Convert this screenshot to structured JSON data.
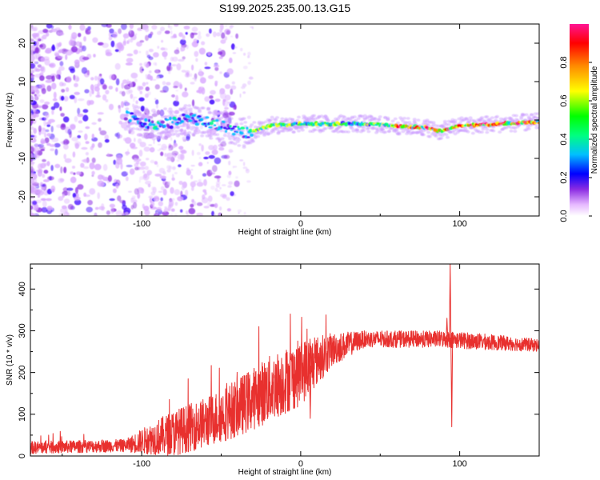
{
  "figure_title": "S199.2025.235.00.13.G15",
  "chart_data": [
    {
      "type": "heatmap",
      "title": "S199.2025.235.00.13.G15",
      "xlabel": "Height of straight line (km)",
      "ylabel": "Frequency (Hz)",
      "xlim": [
        -170,
        150
      ],
      "ylim": [
        -25,
        25
      ],
      "xticks": [
        -100,
        0,
        100
      ],
      "yticks": [
        -20,
        -10,
        0,
        10,
        20
      ],
      "ridge_frequency": [
        {
          "x": -110,
          "y": 1.0
        },
        {
          "x": -90,
          "y": -1.5
        },
        {
          "x": -70,
          "y": 0.5
        },
        {
          "x": -50,
          "y": -1.5
        },
        {
          "x": -35,
          "y": -3.5
        },
        {
          "x": -20,
          "y": -1.5
        },
        {
          "x": 0,
          "y": -1.0
        },
        {
          "x": 40,
          "y": -1.0
        },
        {
          "x": 60,
          "y": -1.5
        },
        {
          "x": 80,
          "y": -2.0
        },
        {
          "x": 87,
          "y": -3.0
        },
        {
          "x": 100,
          "y": -1.5
        },
        {
          "x": 150,
          "y": -0.5
        }
      ],
      "colorbar": {
        "label": "Normalized spectral amplitude",
        "range": [
          0,
          1
        ],
        "ticks": [
          "0.0",
          "0.2",
          "0.4",
          "0.6",
          "0.8"
        ]
      }
    },
    {
      "type": "line",
      "xlabel": "Height of straight line (km)",
      "ylabel": "SNR (10 * v/v)",
      "xlim": [
        -170,
        150
      ],
      "ylim": [
        0,
        460
      ],
      "xticks": [
        -100,
        0,
        100
      ],
      "yticks": [
        0,
        100,
        200,
        300,
        400
      ],
      "series": [
        {
          "name": "SNR",
          "color": "#e8302e",
          "envelope": [
            {
              "x": -170,
              "mean": 20,
              "noise": 15
            },
            {
              "x": -110,
              "mean": 25,
              "noise": 15
            },
            {
              "x": -100,
              "mean": 35,
              "noise": 30
            },
            {
              "x": -80,
              "mean": 55,
              "noise": 55
            },
            {
              "x": -60,
              "mean": 80,
              "noise": 60
            },
            {
              "x": -40,
              "mean": 115,
              "noise": 70
            },
            {
              "x": -20,
              "mean": 160,
              "noise": 80
            },
            {
              "x": 0,
              "mean": 200,
              "noise": 80
            },
            {
              "x": 20,
              "mean": 255,
              "noise": 40
            },
            {
              "x": 40,
              "mean": 280,
              "noise": 20
            },
            {
              "x": 90,
              "mean": 280,
              "noise": 20
            },
            {
              "x": 110,
              "mean": 275,
              "noise": 20
            },
            {
              "x": 150,
              "mean": 265,
              "noise": 15
            }
          ],
          "spikes": [
            {
              "x": 94,
              "y": 460
            },
            {
              "x": 95,
              "y": 70
            },
            {
              "x": 92,
              "y": 330
            },
            {
              "x": 6,
              "y": 90
            }
          ]
        }
      ]
    }
  ]
}
